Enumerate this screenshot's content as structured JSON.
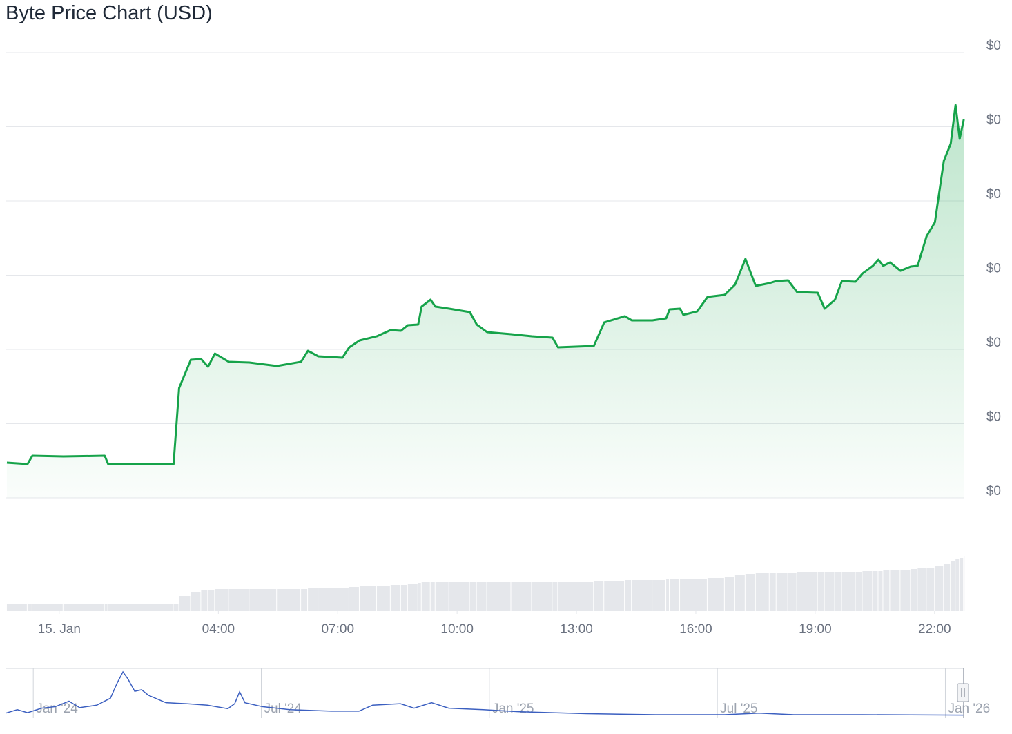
{
  "chart_data": [
    {
      "type": "area",
      "title": "Byte Price Chart (USD)",
      "x": [
        -1.316,
        -0.797,
        -0.675,
        0.104,
        1.143,
        1.229,
        2.874,
        3.013,
        3.307,
        3.567,
        3.74,
        3.913,
        4.26,
        4.779,
        5.472,
        6.078,
        6.251,
        6.511,
        7.117,
        7.29,
        7.55,
        7.983,
        8.329,
        8.589,
        8.762,
        9.022,
        9.108,
        9.333,
        9.455,
        9.801,
        10.32,
        10.494,
        10.753,
        11.359,
        11.879,
        12.398,
        12.537,
        13.437,
        13.697,
        14.216,
        14.39,
        14.909,
        15.255,
        15.342,
        15.602,
        15.688,
        16.035,
        16.294,
        16.727,
        16.987,
        17.247,
        17.506,
        17.853,
        18.026,
        18.32,
        18.545,
        19.065,
        19.238,
        19.498,
        19.671,
        20.017,
        20.19,
        20.45,
        20.589,
        20.71,
        20.883,
        21.143,
        21.403,
        21.576,
        21.801,
        22.009,
        22.234,
        22.407,
        22.528,
        22.632,
        22.736
      ],
      "series": [
        {
          "color": "#16a34a",
          "values": [
            0.00010474,
            0.00010456,
            0.00010567,
            0.00010558,
            0.00010567,
            0.00010456,
            0.00010456,
            0.00011479,
            0.0001186,
            0.0001187,
            0.00011767,
            0.00011944,
            0.00011833,
            0.00011823,
            0.00011777,
            0.00011833,
            0.00011981,
            0.00011907,
            0.00011888,
            0.00012028,
            0.00012121,
            0.00012177,
            0.0001226,
            0.00012251,
            0.00012326,
            0.00012335,
            0.00012577,
            0.0001267,
            0.00012577,
            0.00012549,
            0.00012502,
            0.00012335,
            0.00012233,
            0.00012205,
            0.00012177,
            0.00012158,
            0.00012028,
            0.00012047,
            0.00012363,
            0.00012447,
            0.00012391,
            0.00012391,
            0.00012419,
            0.0001254,
            0.00012549,
            0.00012465,
            0.00012512,
            0.00012707,
            0.00012735,
            0.00012874,
            0.00013219,
            0.00012856,
            0.00012893,
            0.00012921,
            0.0001293,
            0.00012772,
            0.00012763,
            0.00012549,
            0.0001267,
            0.00012921,
            0.00012912,
            0.00013023,
            0.00013126,
            0.00013209,
            0.00013126,
            0.00013172,
            0.0001306,
            0.00013116,
            0.00013126,
            0.00013526,
            0.00013712,
            0.0001454,
            0.00014772,
            0.00015293,
            0.00014837,
            0.00015098
          ]
        }
      ],
      "volume": [
        10,
        10,
        10,
        10,
        10,
        10,
        10,
        22,
        28,
        30,
        31,
        32,
        32,
        32,
        32,
        32,
        33,
        33,
        34,
        35,
        36,
        37,
        38,
        38,
        39,
        40,
        42,
        42,
        42,
        42,
        42,
        42,
        42,
        42,
        42,
        42,
        42,
        43,
        44,
        45,
        45,
        45,
        46,
        46,
        46,
        46,
        47,
        48,
        50,
        52,
        54,
        55,
        55,
        55,
        55,
        56,
        56,
        56,
        57,
        57,
        57,
        58,
        58,
        58,
        59,
        60,
        60,
        61,
        62,
        63,
        65,
        68,
        72,
        75,
        77,
        80
      ],
      "volume_color": "#e5e7eb",
      "vlim": [
        0,
        100
      ],
      "xlim": [
        -1.35,
        22.75
      ],
      "xticks": [
        {
          "value": 0,
          "label": "15. Jan"
        },
        {
          "value": 4,
          "label": "04:00"
        },
        {
          "value": 7,
          "label": "07:00"
        },
        {
          "value": 10,
          "label": "10:00"
        },
        {
          "value": 13,
          "label": "13:00"
        },
        {
          "value": 16,
          "label": "16:00"
        },
        {
          "value": 19,
          "label": "19:00"
        },
        {
          "value": 22,
          "label": "22:00"
        }
      ],
      "ylim": [
        0.0001,
        0.00016
      ],
      "yticks": [
        {
          "value": 0.0001,
          "label": "$0"
        },
        {
          "value": 0.00011,
          "label": "$0"
        },
        {
          "value": 0.00012,
          "label": "$0"
        },
        {
          "value": 0.00013,
          "label": "$0"
        },
        {
          "value": 0.00014,
          "label": "$0"
        },
        {
          "value": 0.00015,
          "label": "$0"
        },
        {
          "value": 0.00016,
          "label": "$0"
        }
      ],
      "grid": true
    },
    {
      "type": "line",
      "x": [
        -0.73,
        -0.42,
        -0.15,
        0.22,
        0.58,
        0.94,
        1.22,
        1.67,
        2.03,
        2.21,
        2.36,
        2.49,
        2.67,
        2.85,
        3.03,
        3.49,
        4.03,
        4.58,
        5.12,
        5.3,
        5.43,
        5.57,
        6.03,
        6.75,
        7.84,
        8.57,
        8.93,
        9.66,
        10.02,
        10.48,
        10.93,
        11.84,
        12.75,
        14.56,
        16.38,
        18.19,
        19.1,
        20.01,
        21.82,
        24.47
      ],
      "series": [
        {
          "color": "#3b5fc0",
          "values": [
            1.0,
            1.7,
            1.1,
            2.0,
            2.3,
            3.4,
            2.1,
            2.6,
            4.0,
            7.1,
            9.3,
            7.9,
            5.4,
            5.7,
            4.6,
            3.1,
            2.9,
            2.6,
            1.9,
            2.9,
            5.3,
            3.1,
            2.3,
            1.7,
            1.4,
            1.4,
            2.6,
            2.9,
            2.0,
            3.1,
            2.0,
            1.7,
            1.3,
            0.9,
            0.7,
            0.7,
            1.0,
            0.7,
            0.7,
            0.6
          ]
        }
      ],
      "xlim": [
        -0.73,
        24.5
      ],
      "ylim": [
        0,
        10
      ],
      "xticks": [
        {
          "value": 0,
          "label": "Jan '24"
        },
        {
          "value": 6,
          "label": "Jul '24"
        },
        {
          "value": 12,
          "label": "Jan '25"
        },
        {
          "value": 18,
          "label": "Jul '25"
        },
        {
          "value": 24,
          "label": "Jan '26"
        }
      ]
    }
  ]
}
